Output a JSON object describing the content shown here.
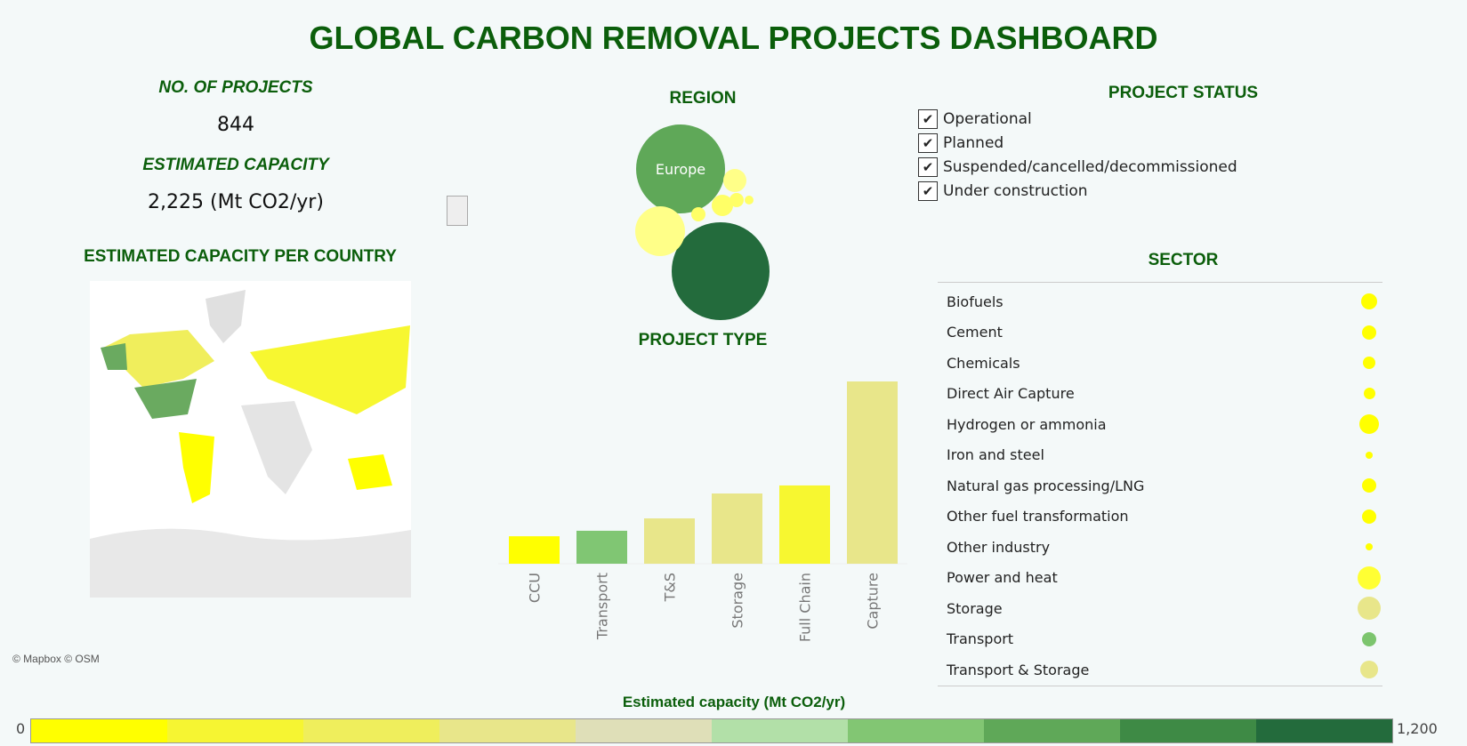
{
  "title": "GLOBAL CARBON REMOVAL PROJECTS DASHBOARD",
  "kpis": {
    "projects_label": "NO. OF PROJECTS",
    "projects_value": "844",
    "capacity_label": "ESTIMATED CAPACITY",
    "capacity_value": "2,225 (Mt CO2/yr)"
  },
  "map": {
    "title": "ESTIMATED CAPACITY PER COUNTRY",
    "attribution": "© Mapbox © OSM"
  },
  "region": {
    "title": "REGION",
    "bubbles": [
      {
        "label": "Europe",
        "color": "#5fa858"
      },
      {
        "label": "",
        "color": "#236b3c"
      },
      {
        "label": "",
        "color": "#ffff88"
      }
    ]
  },
  "status": {
    "title": "PROJECT STATUS",
    "items": [
      {
        "label": "Operational",
        "checked": true
      },
      {
        "label": "Planned",
        "checked": true
      },
      {
        "label": "Suspended/cancelled/decommissioned",
        "checked": true
      },
      {
        "label": "Under construction",
        "checked": true
      }
    ]
  },
  "sector": {
    "title": "SECTOR",
    "items": [
      {
        "label": "Biofuels",
        "size": 18,
        "color": "#ffff00"
      },
      {
        "label": "Cement",
        "size": 16,
        "color": "#ffff00"
      },
      {
        "label": "Chemicals",
        "size": 14,
        "color": "#ffff00"
      },
      {
        "label": "Direct Air Capture",
        "size": 13,
        "color": "#ffff00"
      },
      {
        "label": "Hydrogen or ammonia",
        "size": 22,
        "color": "#ffff00"
      },
      {
        "label": "Iron and steel",
        "size": 8,
        "color": "#ffff00"
      },
      {
        "label": "Natural gas processing/LNG",
        "size": 16,
        "color": "#ffff00"
      },
      {
        "label": "Other fuel transformation",
        "size": 16,
        "color": "#ffff00"
      },
      {
        "label": "Other industry",
        "size": 8,
        "color": "#ffff00"
      },
      {
        "label": "Power and heat",
        "size": 26,
        "color": "#ffff33"
      },
      {
        "label": "Storage",
        "size": 26,
        "color": "#e8e68a"
      },
      {
        "label": "Transport",
        "size": 16,
        "color": "#7cc56e"
      },
      {
        "label": "Transport & Storage",
        "size": 20,
        "color": "#e8e68a"
      }
    ]
  },
  "chart_data": {
    "type": "bar",
    "title": "PROJECT TYPE",
    "categories": [
      "CCU",
      "Transport",
      "T&S",
      "Storage",
      "Full Chain",
      "Capture"
    ],
    "values": [
      140,
      168,
      231,
      358,
      399,
      929
    ],
    "colors": [
      "#ffff00",
      "#80c673",
      "#e8e68a",
      "#e8e68a",
      "#f7f730",
      "#e8e68a"
    ],
    "xlabel": "",
    "ylabel": ""
  },
  "color_legend": {
    "title": "Estimated capacity (Mt CO2/yr)",
    "min": "0",
    "max": "1,200",
    "colors": [
      "#ffff00",
      "#f6f532",
      "#efee5c",
      "#e8e68a",
      "#dfdfb8",
      "#b2e0a8",
      "#82c673",
      "#5fa858",
      "#3e8a45",
      "#236b3c"
    ]
  }
}
